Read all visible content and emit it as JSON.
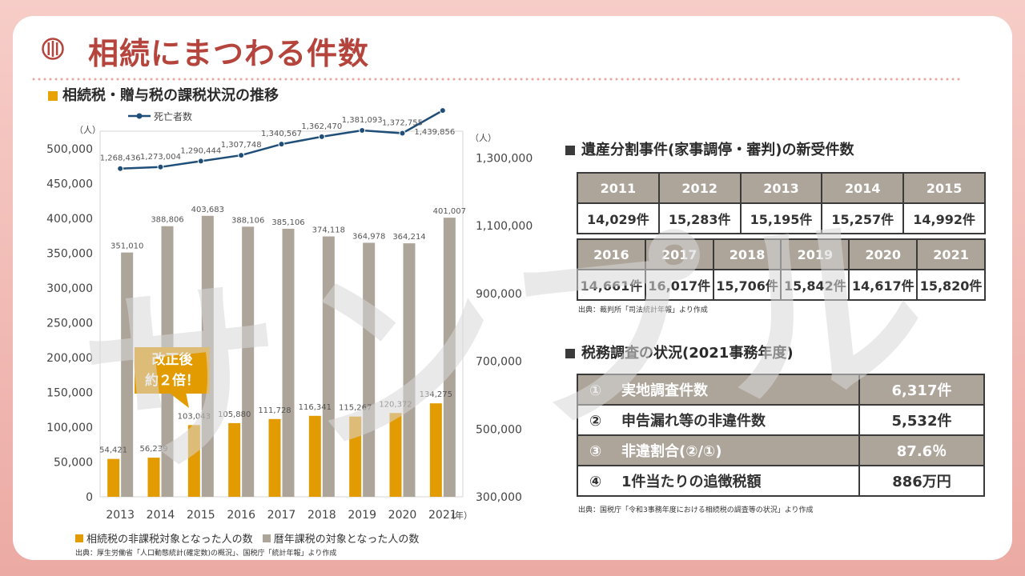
{
  "page_title": "相続にまつわる件数",
  "left_section": {
    "title": "相続税・贈与税の課税状況の推移",
    "callout_line1": "改正後",
    "callout_line2": "約２倍！",
    "source": "出典：厚生労働省「人口動態統計(確定数)の概況」、国税庁「統計年報」より作成"
  },
  "chart_data": {
    "type": "bar",
    "categories": [
      "2013",
      "2014",
      "2015",
      "2016",
      "2017",
      "2018",
      "2019",
      "2020",
      "2021"
    ],
    "series": [
      {
        "name": "相続税の非課税対象となった人の数",
        "color": "#e29b00",
        "values": [
          54421,
          56239,
          103043,
          105880,
          111728,
          116341,
          115267,
          120372,
          134275
        ],
        "labels": [
          "54,421",
          "56,239",
          "103,043",
          "105,880",
          "111,728",
          "116,341",
          "115,267",
          "120,372",
          "134,275"
        ]
      },
      {
        "name": "暦年課税の対象となった人の数",
        "color": "#ada49a",
        "values": [
          351010,
          388806,
          403683,
          388106,
          385106,
          374118,
          364978,
          364214,
          401007
        ],
        "labels": [
          "351,010",
          "388,806",
          "403,683",
          "388,106",
          "385,106",
          "374,118",
          "364,978",
          "364,214",
          "401,007"
        ]
      },
      {
        "name": "死亡者数",
        "type": "line",
        "axis": "right",
        "color": "#1f4e79",
        "values": [
          1268436,
          1273004,
          1290444,
          1307748,
          1340567,
          1362470,
          1381093,
          1372755,
          1439856
        ],
        "labels": [
          "1,268,436",
          "1,273,004",
          "1,290,444",
          "1,307,748",
          "1,340,567",
          "1,362,470",
          "1,381,093",
          "1,372,755",
          "1,439,856"
        ]
      }
    ],
    "y_left": {
      "unit": "（人）",
      "ylim": [
        0,
        500000
      ],
      "ticks": [
        "0",
        "50,000",
        "100,000",
        "150,000",
        "200,000",
        "250,000",
        "300,000",
        "350,000",
        "400,000",
        "450,000",
        "500,000"
      ]
    },
    "y_right": {
      "unit": "（人）",
      "ylim": [
        300000,
        1400000
      ],
      "ticks": [
        "300,000",
        "500,000",
        "700,000",
        "900,000",
        "1,100,000",
        "1,300,000"
      ]
    },
    "x_unit": "（年）"
  },
  "inheritance_division": {
    "title": "遺産分割事件(家事調停・審判)の新受件数",
    "rows1": {
      "years": [
        "2011",
        "2012",
        "2013",
        "2014",
        "2015"
      ],
      "counts": [
        "14,029件",
        "15,283件",
        "15,195件",
        "15,257件",
        "14,992件"
      ]
    },
    "rows2": {
      "years": [
        "2016",
        "2017",
        "2018",
        "2019",
        "2020",
        "2021"
      ],
      "counts": [
        "14,661件",
        "16,017件",
        "15,706件",
        "15,842件",
        "14,617件",
        "15,820件"
      ]
    },
    "source": "出典：裁判所「司法統計年報」より作成"
  },
  "tax_survey": {
    "title": "税務調査の状況(2021事務年度)",
    "rows": [
      {
        "num": "①",
        "label": "実地調査件数",
        "value": "6,317件"
      },
      {
        "num": "②",
        "label": "申告漏れ等の非違件数",
        "value": "5,532件"
      },
      {
        "num": "③",
        "label": "非違割合(②/①)",
        "value": "87.6％"
      },
      {
        "num": "④",
        "label": "1件当たりの追徴税額",
        "value": "886万円"
      }
    ],
    "source": "出典：国税庁「令和3事務年度における相続税の調査等の状況」より作成"
  },
  "watermark": "サンプル"
}
